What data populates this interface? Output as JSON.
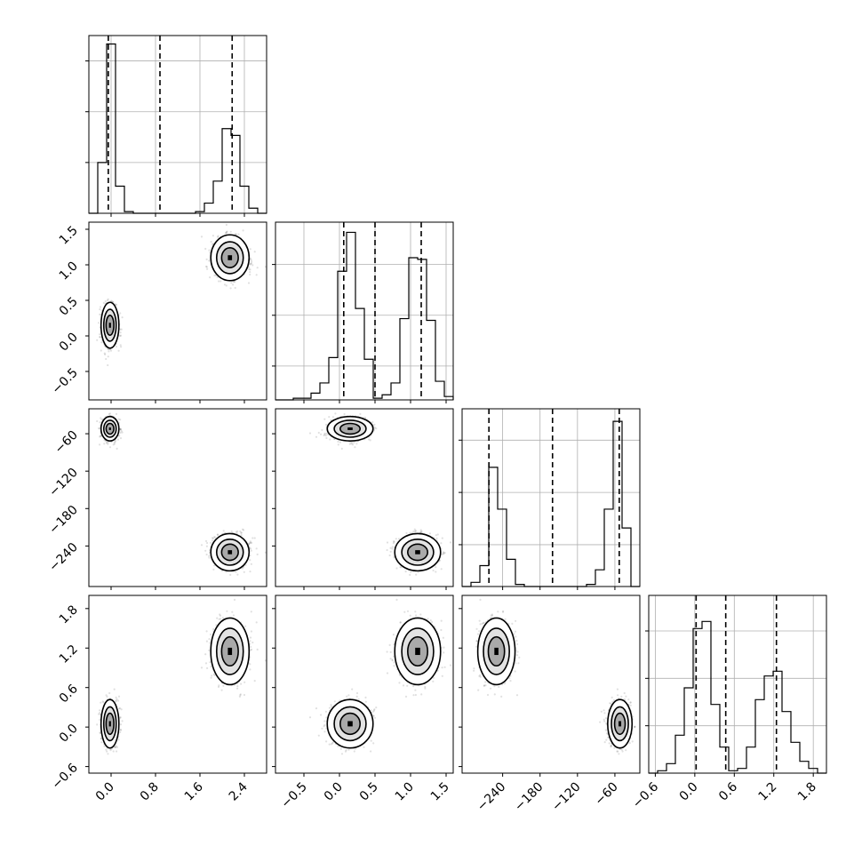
{
  "chart_data": {
    "type": "corner",
    "grid": true,
    "dimensions": [
      {
        "range": [
          -0.4,
          2.8
        ],
        "ticks": [
          {
            "v": 0.0,
            "label": "0.0"
          },
          {
            "v": 0.8,
            "label": "0.8"
          },
          {
            "v": 1.6,
            "label": "1.6"
          },
          {
            "v": 2.4,
            "label": "2.4"
          }
        ],
        "quantiles": [
          -0.05,
          0.88,
          2.18
        ],
        "histogram": {
          "edges": [
            -0.4,
            -0.24,
            -0.08,
            0.08,
            0.24,
            0.4,
            0.56,
            0.72,
            0.88,
            1.04,
            1.2,
            1.36,
            1.52,
            1.68,
            1.84,
            2.0,
            2.16,
            2.32,
            2.48,
            2.64,
            2.8
          ],
          "counts": [
            0,
            0.3,
            1.0,
            0.16,
            0.01,
            0,
            0,
            0,
            0,
            0,
            0,
            0,
            0.01,
            0.06,
            0.19,
            0.5,
            0.46,
            0.16,
            0.03,
            0
          ],
          "ymax": 1.05,
          "yticks": [
            0.3,
            0.6,
            0.9
          ]
        }
      },
      {
        "range": [
          -0.9,
          1.6
        ],
        "ticks": [
          {
            "v": -0.5,
            "label": "−0.5"
          },
          {
            "v": 0.0,
            "label": "0.0"
          },
          {
            "v": 0.5,
            "label": "0.5"
          },
          {
            "v": 1.0,
            "label": "1.0"
          },
          {
            "v": 1.5,
            "label": "1.5"
          }
        ],
        "quantiles": [
          0.06,
          0.5,
          1.15
        ],
        "histogram": {
          "edges": [
            -0.9,
            -0.775,
            -0.65,
            -0.525,
            -0.4,
            -0.275,
            -0.15,
            -0.025,
            0.1,
            0.225,
            0.35,
            0.475,
            0.6,
            0.725,
            0.85,
            0.975,
            1.1,
            1.225,
            1.35,
            1.475,
            1.6
          ],
          "counts": [
            0,
            0,
            0.01,
            0.01,
            0.04,
            0.1,
            0.25,
            0.76,
            0.99,
            0.54,
            0.24,
            0.01,
            0.03,
            0.1,
            0.48,
            0.84,
            0.83,
            0.47,
            0.11,
            0.02
          ],
          "ymax": 1.05,
          "yticks": [
            0.2,
            0.5,
            0.8
          ]
        }
      },
      {
        "range": [
          -305,
          -20
        ],
        "ticks": [
          {
            "v": -240,
            "label": "−240"
          },
          {
            "v": -180,
            "label": "−180"
          },
          {
            "v": -120,
            "label": "−120"
          },
          {
            "v": -60,
            "label": "−60"
          }
        ],
        "quantiles": [
          -262,
          -160,
          -53
        ],
        "histogram": {
          "edges": [
            -305,
            -290.75,
            -276.5,
            -262.25,
            -248,
            -233.75,
            -219.5,
            -205.25,
            -191,
            -176.75,
            -162.5,
            -148.25,
            -134,
            -119.75,
            -105.5,
            -91.25,
            -77,
            -62.75,
            -48.5,
            -34.25,
            -20
          ],
          "counts": [
            0,
            0.02,
            0.1,
            0.57,
            0.37,
            0.13,
            0.01,
            0,
            0,
            0,
            0,
            0,
            0,
            0,
            0.01,
            0.08,
            0.37,
            0.79,
            0.28,
            0
          ],
          "ymax": 0.85,
          "yticks": [
            0.2,
            0.45,
            0.7
          ]
        }
      },
      {
        "range": [
          -0.7,
          2.0
        ],
        "ticks": [
          {
            "v": -0.6,
            "label": "−0.6"
          },
          {
            "v": 0.0,
            "label": "0.0"
          },
          {
            "v": 0.6,
            "label": "0.6"
          },
          {
            "v": 1.2,
            "label": "1.2"
          },
          {
            "v": 1.8,
            "label": "1.8"
          }
        ],
        "quantiles": [
          0.02,
          0.47,
          1.24
        ],
        "histogram": {
          "edges": [
            -0.7,
            -0.565,
            -0.43,
            -0.295,
            -0.16,
            -0.025,
            0.11,
            0.245,
            0.38,
            0.515,
            0.65,
            0.785,
            0.92,
            1.055,
            1.19,
            1.325,
            1.46,
            1.595,
            1.73,
            1.865,
            2.0
          ],
          "counts": [
            0,
            0.01,
            0.04,
            0.16,
            0.36,
            0.61,
            0.64,
            0.29,
            0.11,
            0.01,
            0.02,
            0.11,
            0.31,
            0.41,
            0.43,
            0.26,
            0.13,
            0.05,
            0.02,
            0
          ],
          "ymax": 0.75,
          "yticks": [
            0.2,
            0.4,
            0.6
          ]
        }
      }
    ],
    "modes": [
      {
        "center": [
          -0.02,
          0.15,
          -52,
          0.05
        ],
        "sigma": [
          0.07,
          0.14,
          8.5,
          0.16
        ],
        "weight": 0.5
      },
      {
        "center": [
          2.14,
          1.1,
          -250,
          1.15
        ],
        "sigma": [
          0.15,
          0.14,
          13,
          0.22
        ],
        "weight": 0.5
      }
    ],
    "contour_levels": [
      1.0,
      1.6,
      2.3
    ]
  }
}
